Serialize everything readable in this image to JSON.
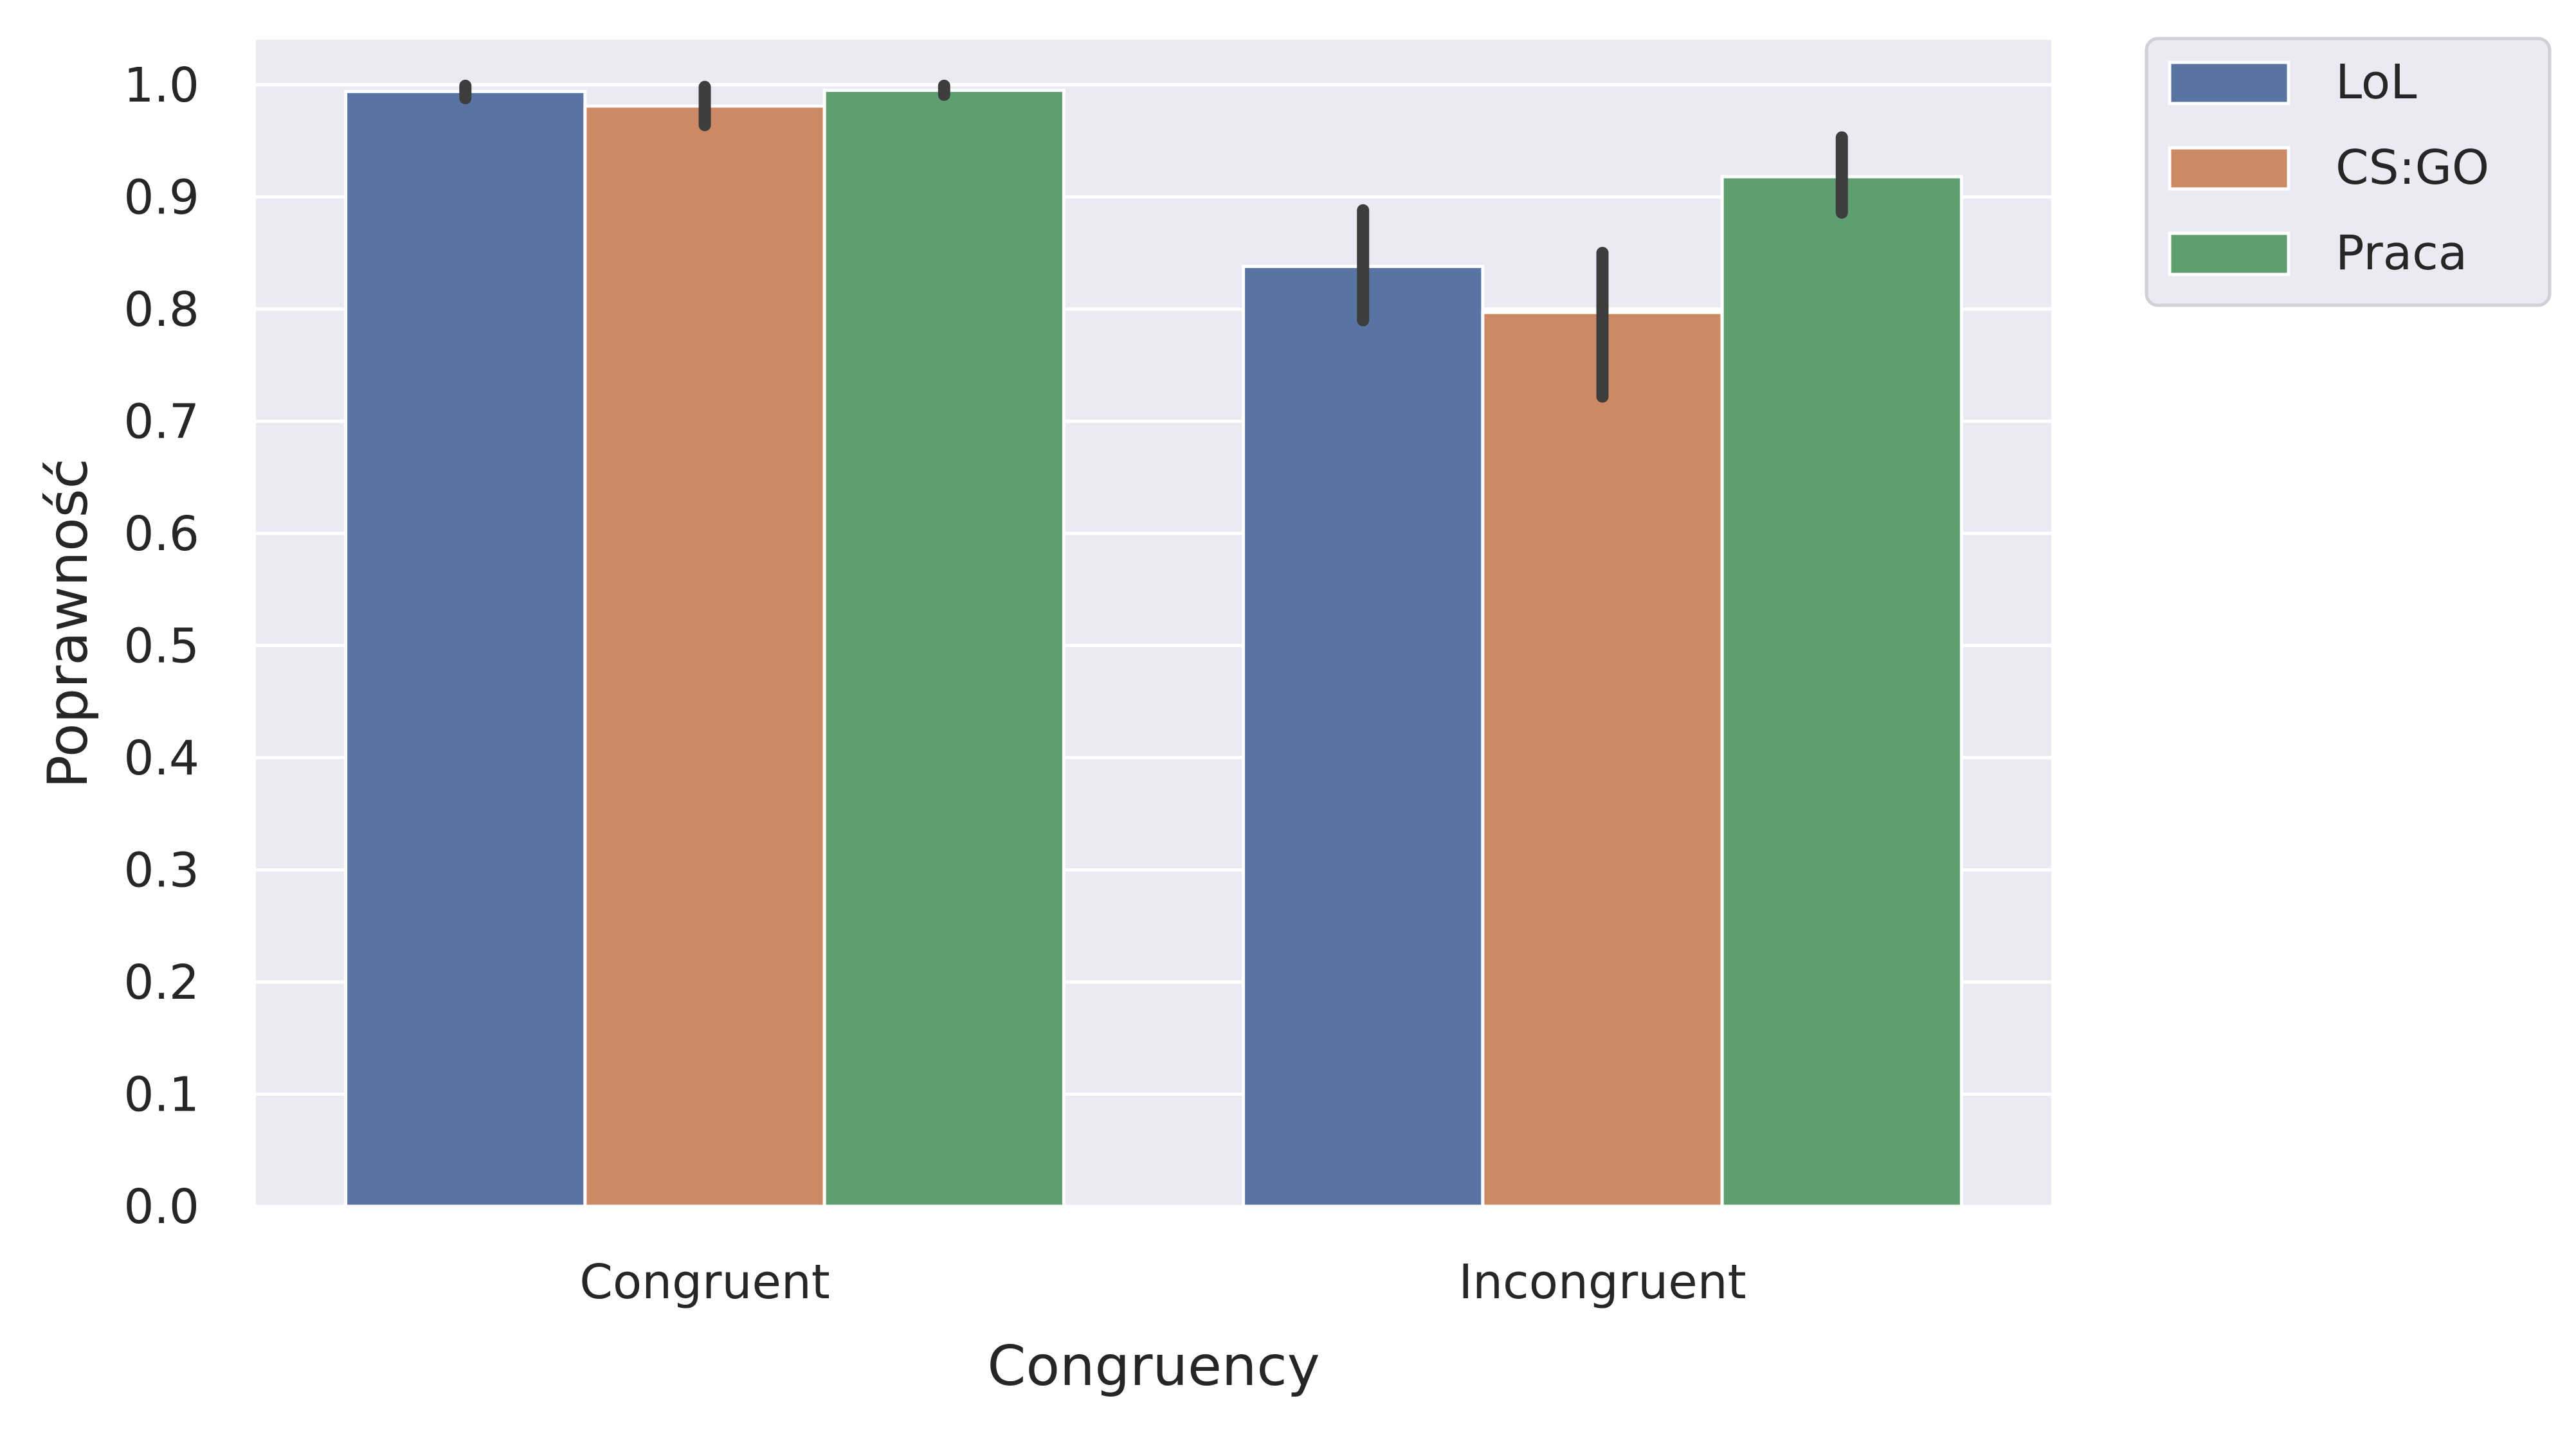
{
  "chart_data": {
    "type": "bar",
    "xlabel": "Congruency",
    "ylabel": "Poprawność",
    "categories": [
      "Congruent",
      "Incongruent"
    ],
    "series": [
      {
        "name": "LoL",
        "color": "#5874a3",
        "values": [
          0.994,
          0.838
        ],
        "ci": [
          [
            0.988,
            0.999
          ],
          [
            0.79,
            0.888
          ]
        ]
      },
      {
        "name": "CS:GO",
        "color": "#cc8963",
        "values": [
          0.981,
          0.797
        ],
        "ci": [
          [
            0.964,
            0.998
          ],
          [
            0.722,
            0.85
          ]
        ]
      },
      {
        "name": "Praca",
        "color": "#5f9e6e",
        "values": [
          0.995,
          0.918
        ],
        "ci": [
          [
            0.991,
            0.999
          ],
          [
            0.886,
            0.953
          ]
        ]
      }
    ],
    "ylim": [
      0,
      1.04
    ],
    "yticks": [
      "0.0",
      "0.1",
      "0.2",
      "0.3",
      "0.4",
      "0.5",
      "0.6",
      "0.7",
      "0.8",
      "0.9",
      "1.0"
    ],
    "grid": true,
    "plot_background": "#eaeaf2",
    "legend_position": "outside-top-right"
  }
}
